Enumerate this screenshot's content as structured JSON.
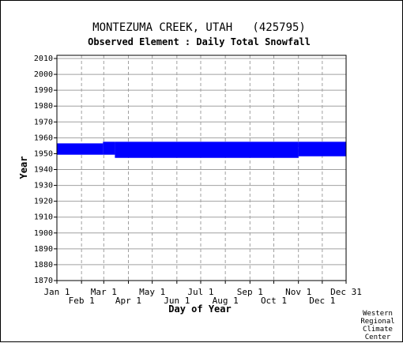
{
  "chart_data": {
    "type": "scatter",
    "title": "MONTEZUMA CREEK, UTAH   (425795)",
    "subtitle": "Observed Element : Daily Total Snowfall",
    "xlabel": "Day of Year",
    "ylabel": "Year",
    "ylim": [
      1870,
      2012
    ],
    "xlim": [
      1,
      365
    ],
    "y_ticks": [
      "1870",
      "1880",
      "1890",
      "1900",
      "1910",
      "1920",
      "1930",
      "1940",
      "1950",
      "1960",
      "1970",
      "1980",
      "1990",
      "2000",
      "2010"
    ],
    "x_ticks_top_row": [
      "Jan 1",
      "Mar 1",
      "May 1",
      "Jul 1",
      "Sep 1",
      "Nov 1",
      "Dec 31"
    ],
    "x_ticks_bottom_row": [
      "Feb 1",
      "Apr 1",
      "Jun 1",
      "Aug 1",
      "Oct 1",
      "Dec 1"
    ],
    "grid": true,
    "series_color": "#0000ff",
    "observed_bands": [
      {
        "day_start": 1,
        "day_end": 59,
        "year_start": 1950,
        "year_end": 1956
      },
      {
        "day_start": 59,
        "day_end": 74,
        "year_start": 1950,
        "year_end": 1957
      },
      {
        "day_start": 74,
        "day_end": 305,
        "year_start": 1948,
        "year_end": 1957
      },
      {
        "day_start": 305,
        "day_end": 365,
        "year_start": 1949,
        "year_end": 1957
      }
    ]
  },
  "credit": [
    "Western",
    "Regional",
    "Climate",
    "Center"
  ]
}
